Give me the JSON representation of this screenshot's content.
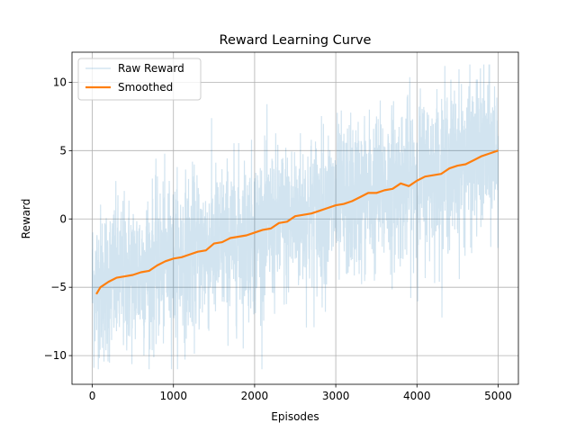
{
  "chart_data": {
    "type": "line",
    "title": "Reward Learning Curve",
    "xlabel": "Episodes",
    "ylabel": "Reward",
    "xlim": [
      -250,
      5250
    ],
    "ylim": [
      -12.1,
      12.2
    ],
    "xticks": [
      0,
      1000,
      2000,
      3000,
      4000,
      5000
    ],
    "yticks": [
      -10,
      -5,
      0,
      5,
      10
    ],
    "ytick_labels": [
      "−10",
      "−5",
      "0",
      "5",
      "10"
    ],
    "grid": true,
    "legend": "top-left",
    "series": [
      {
        "name": "Raw Reward",
        "color": "#1f77b4",
        "opacity": 0.2,
        "description_points": {
          "x": [
            0,
            250,
            500,
            750,
            1000,
            1250,
            1500,
            1750,
            2000,
            2250,
            2500,
            2750,
            3000,
            3250,
            3500,
            3750,
            4000,
            4250,
            4500,
            4750,
            5000
          ],
          "trend": [
            -5.0,
            -4.5,
            -4.0,
            -3.5,
            -3.0,
            -2.5,
            -2.0,
            -1.5,
            -1.0,
            -0.5,
            0.0,
            0.5,
            1.0,
            1.5,
            2.0,
            2.5,
            3.0,
            3.5,
            4.0,
            4.5,
            5.0
          ],
          "spread": 3.2
        }
      },
      {
        "name": "Smoothed",
        "color": "#ff7f0e",
        "x": [
          50,
          100,
          200,
          300,
          400,
          500,
          600,
          700,
          800,
          900,
          1000,
          1100,
          1200,
          1300,
          1400,
          1500,
          1600,
          1700,
          1800,
          1900,
          2000,
          2100,
          2200,
          2300,
          2400,
          2500,
          2600,
          2700,
          2800,
          2900,
          3000,
          3100,
          3200,
          3300,
          3400,
          3500,
          3600,
          3700,
          3800,
          3900,
          4000,
          4100,
          4200,
          4300,
          4400,
          4500,
          4600,
          4700,
          4800,
          4900,
          5000
        ],
        "y": [
          -5.5,
          -5.0,
          -4.6,
          -4.3,
          -4.2,
          -4.1,
          -3.9,
          -3.8,
          -3.4,
          -3.1,
          -2.9,
          -2.8,
          -2.6,
          -2.4,
          -2.3,
          -1.8,
          -1.7,
          -1.4,
          -1.3,
          -1.2,
          -1.0,
          -0.8,
          -0.7,
          -0.3,
          -0.2,
          0.2,
          0.3,
          0.4,
          0.6,
          0.8,
          1.0,
          1.1,
          1.3,
          1.6,
          1.9,
          1.9,
          2.1,
          2.2,
          2.6,
          2.4,
          2.8,
          3.1,
          3.2,
          3.3,
          3.7,
          3.9,
          4.0,
          4.3,
          4.6,
          4.8,
          5.0
        ]
      }
    ]
  }
}
